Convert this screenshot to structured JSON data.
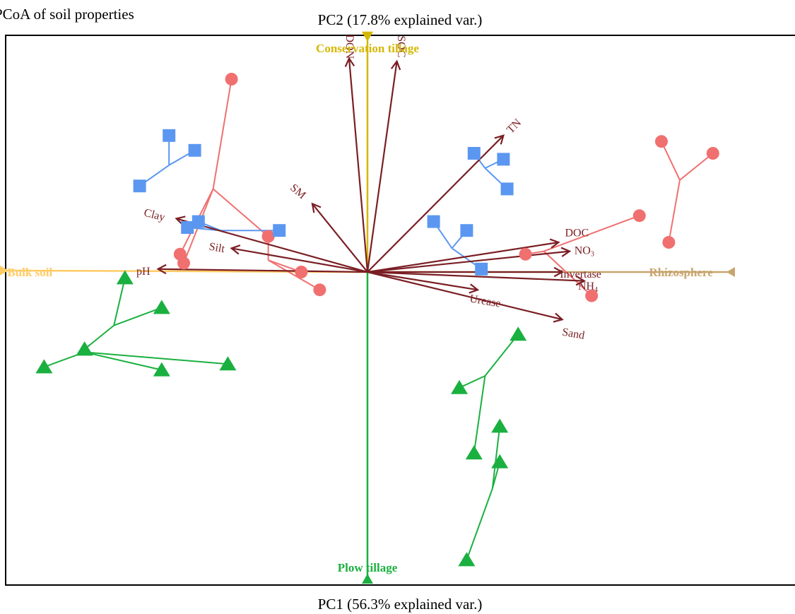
{
  "chart_data": {
    "type": "scatter",
    "title": "PCoA of soil properties",
    "xlabel": "PC1 (56.3% explained var.)",
    "ylabel": "PC2 (17.8% explained var.)",
    "xlim": [
      -1.0,
      1.0
    ],
    "ylim": [
      -1.05,
      0.81
    ],
    "colors": {
      "circle": "#f07070",
      "square": "#5b97f0",
      "triangle": "#1ab040",
      "arrow": "#7a1f24",
      "bulk": "#ffcc66",
      "rhizo": "#c8a56e",
      "conservation": "#d4b800",
      "plow": "#1ab040"
    },
    "groups": [
      {
        "shape": "circle",
        "centroid": [
          -0.42,
          0.28
        ],
        "points": [
          [
            -0.37,
            0.65
          ],
          [
            -0.51,
            0.06
          ],
          [
            -0.5,
            0.03
          ],
          [
            -0.27,
            0.12
          ]
        ]
      },
      {
        "shape": "circle",
        "centroid": [
          -0.27,
          0.04
        ],
        "points": [
          [
            -0.27,
            0.12
          ],
          [
            -0.18,
            0.0
          ],
          [
            -0.13,
            -0.06
          ]
        ]
      },
      {
        "shape": "square",
        "centroid": [
          -0.54,
          0.36
        ],
        "points": [
          [
            -0.54,
            0.46
          ],
          [
            -0.47,
            0.41
          ],
          [
            -0.62,
            0.29
          ]
        ]
      },
      {
        "shape": "square",
        "centroid": [
          -0.4,
          0.14
        ],
        "points": [
          [
            -0.49,
            0.15
          ],
          [
            -0.46,
            0.17
          ],
          [
            -0.24,
            0.14
          ]
        ]
      },
      {
        "shape": "square",
        "centroid": [
          0.32,
          0.35
        ],
        "points": [
          [
            0.29,
            0.4
          ],
          [
            0.37,
            0.38
          ],
          [
            0.38,
            0.28
          ]
        ]
      },
      {
        "shape": "square",
        "centroid": [
          0.23,
          0.08
        ],
        "points": [
          [
            0.18,
            0.17
          ],
          [
            0.27,
            0.14
          ],
          [
            0.31,
            0.01
          ]
        ]
      },
      {
        "shape": "circle",
        "centroid": [
          0.85,
          0.31
        ],
        "points": [
          [
            0.8,
            0.44
          ],
          [
            0.94,
            0.4
          ],
          [
            0.82,
            0.1
          ]
        ]
      },
      {
        "shape": "circle",
        "centroid": [
          0.48,
          0.07
        ],
        "points": [
          [
            0.74,
            0.19
          ],
          [
            0.43,
            0.06
          ],
          [
            0.61,
            -0.08
          ]
        ]
      },
      {
        "shape": "triangle",
        "centroid": [
          -0.69,
          -0.18
        ],
        "points": [
          [
            -0.66,
            -0.02
          ],
          [
            -0.56,
            -0.12
          ],
          [
            -0.77,
            -0.26
          ]
        ]
      },
      {
        "shape": "triangle",
        "centroid": [
          -0.77,
          -0.27
        ],
        "points": [
          [
            -0.77,
            -0.26
          ],
          [
            -0.88,
            -0.32
          ],
          [
            -0.56,
            -0.33
          ],
          [
            -0.38,
            -0.31
          ]
        ]
      },
      {
        "shape": "triangle",
        "centroid": [
          0.32,
          -0.35
        ],
        "points": [
          [
            0.41,
            -0.21
          ],
          [
            0.25,
            -0.39
          ],
          [
            0.29,
            -0.61
          ]
        ]
      },
      {
        "shape": "triangle",
        "centroid": [
          0.34,
          -0.73
        ],
        "points": [
          [
            0.36,
            -0.52
          ],
          [
            0.36,
            -0.64
          ],
          [
            0.27,
            -0.97
          ]
        ]
      }
    ],
    "arrows": [
      {
        "label": "DON",
        "x": -0.05,
        "y": 0.72,
        "lx": -0.05,
        "ly": 0.76,
        "rot": 90
      },
      {
        "label": "SOC",
        "x": 0.08,
        "y": 0.71,
        "lx": 0.09,
        "ly": 0.76,
        "rot": 90
      },
      {
        "label": "TN",
        "x": 0.37,
        "y": 0.46,
        "lx": 0.4,
        "ly": 0.49,
        "rot": -45
      },
      {
        "label": "SM",
        "x": -0.15,
        "y": 0.23,
        "lx": -0.19,
        "ly": 0.27,
        "rot": 40
      },
      {
        "label": "Clay",
        "x": -0.52,
        "y": 0.18,
        "lx": -0.58,
        "ly": 0.19,
        "rot": 15
      },
      {
        "label": "Silt",
        "x": -0.37,
        "y": 0.08,
        "lx": -0.41,
        "ly": 0.08,
        "rot": 10
      },
      {
        "label": "pH",
        "x": -0.57,
        "y": 0.01,
        "lx": -0.61,
        "ly": 0.0,
        "rot": 0
      },
      {
        "label": "DOC",
        "x": 0.52,
        "y": 0.1,
        "lx": 0.57,
        "ly": 0.13,
        "rot": 0
      },
      {
        "label": "NO",
        "sub": "3",
        "x": 0.55,
        "y": 0.07,
        "lx": 0.59,
        "ly": 0.07,
        "rot": 0
      },
      {
        "label": "Invertase",
        "x": 0.53,
        "y": 0.0,
        "lx": 0.58,
        "ly": -0.01,
        "rot": 0
      },
      {
        "label": "NH",
        "sub": "4",
        "x": 0.59,
        "y": -0.03,
        "lx": 0.6,
        "ly": -0.05,
        "rot": 0
      },
      {
        "label": "Urease",
        "x": 0.3,
        "y": -0.06,
        "lx": 0.32,
        "ly": -0.1,
        "rot": 10
      },
      {
        "label": "Sand",
        "x": 0.53,
        "y": -0.16,
        "lx": 0.56,
        "ly": -0.21,
        "rot": 10
      }
    ],
    "environment": [
      {
        "label": "Bulk soil",
        "x": -1.0,
        "y": 0.005,
        "lx": -0.98,
        "ly": 0.0,
        "color": "bulk",
        "anchor": "start"
      },
      {
        "label": "Rhizosphere",
        "x": 1.0,
        "y": 0.0,
        "lx": 0.94,
        "ly": 0.0,
        "color": "rhizo",
        "anchor": "end"
      },
      {
        "label": "Conservation tillage",
        "x": 0.0,
        "y": 0.81,
        "lx": 0.0,
        "ly": 0.755,
        "color": "conservation",
        "anchor": "middle"
      },
      {
        "label": "Plow tillage",
        "x": 0.0,
        "y": -1.05,
        "lx": 0.0,
        "ly": -0.995,
        "color": "plow",
        "anchor": "middle"
      }
    ]
  }
}
